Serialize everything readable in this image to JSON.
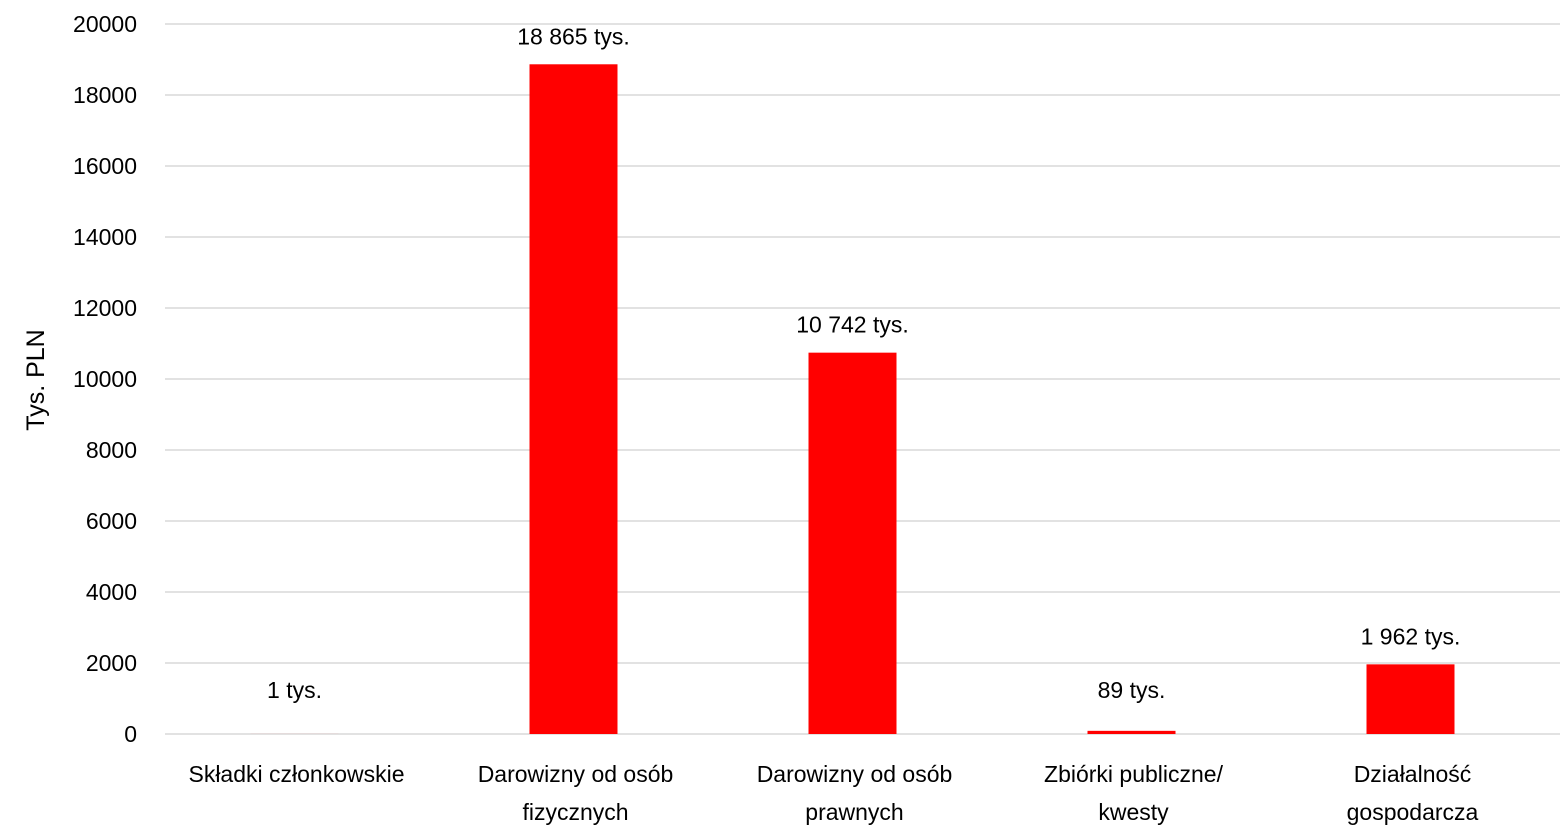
{
  "chart_data": {
    "type": "bar",
    "ylabel": "Tys. PLN",
    "xlabel": "",
    "ylim": [
      0,
      20000
    ],
    "yticks": [
      0,
      2000,
      4000,
      6000,
      8000,
      10000,
      12000,
      14000,
      16000,
      18000,
      20000
    ],
    "grid": true,
    "bar_color": "#ff0000",
    "categories": [
      [
        "Składki członkowskie"
      ],
      [
        "Darowizny od osób",
        "fizycznych"
      ],
      [
        "Darowizny od osób",
        "prawnych"
      ],
      [
        "Zbiórki publiczne/",
        "kwesty"
      ],
      [
        "Działalność",
        "gospodarcza"
      ]
    ],
    "values": [
      1,
      18865,
      10742,
      89,
      1962
    ],
    "data_labels": [
      "1 tys.",
      "18 865 tys.",
      "10 742 tys.",
      "89 tys.",
      "1 962 tys."
    ]
  }
}
